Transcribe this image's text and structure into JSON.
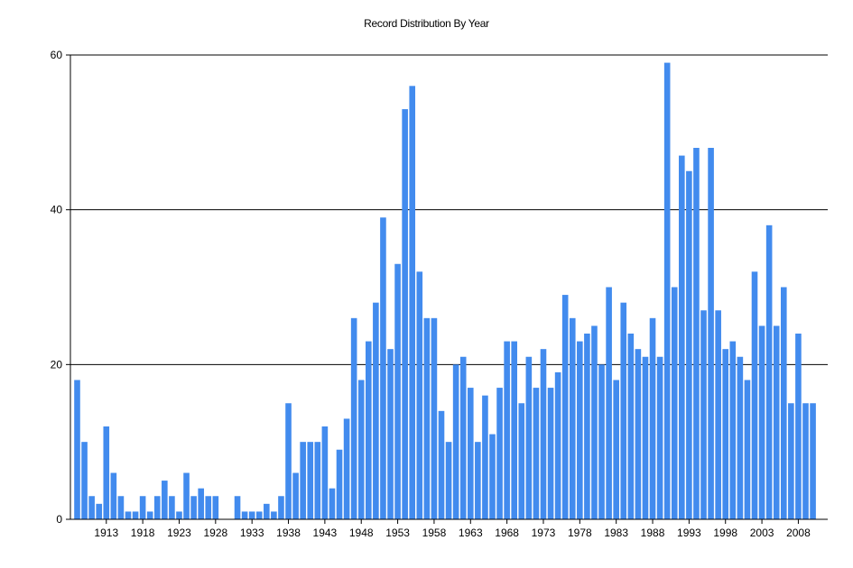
{
  "chart_data": {
    "type": "bar",
    "title": "Record Distribution By Year",
    "xlabel": "",
    "ylabel": "",
    "ylim": [
      0,
      60
    ],
    "yticks": [
      0,
      20,
      40,
      60
    ],
    "xtick_labels": [
      "1913",
      "1918",
      "1923",
      "1928",
      "1933",
      "1938",
      "1943",
      "1948",
      "1953",
      "1958",
      "1963",
      "1968",
      "1973",
      "1978",
      "1983",
      "1988",
      "1993",
      "1998",
      "2003",
      "2008"
    ],
    "grid": "horizontal major lines at 20, 40, 60",
    "legend": "none",
    "bar_color": "#428BEE",
    "categories": [
      1909,
      1910,
      1911,
      1912,
      1913,
      1914,
      1915,
      1916,
      1917,
      1918,
      1919,
      1920,
      1921,
      1922,
      1923,
      1924,
      1925,
      1926,
      1927,
      1928,
      1929,
      1930,
      1931,
      1932,
      1933,
      1934,
      1935,
      1936,
      1937,
      1938,
      1939,
      1940,
      1941,
      1942,
      1943,
      1944,
      1945,
      1946,
      1947,
      1948,
      1949,
      1950,
      1951,
      1952,
      1953,
      1954,
      1955,
      1956,
      1957,
      1958,
      1959,
      1960,
      1961,
      1962,
      1963,
      1964,
      1965,
      1966,
      1967,
      1968,
      1969,
      1970,
      1971,
      1972,
      1973,
      1974,
      1975,
      1976,
      1977,
      1978,
      1979,
      1980,
      1981,
      1982,
      1983,
      1984,
      1985,
      1986,
      1987,
      1988,
      1989,
      1990,
      1991,
      1992,
      1993,
      1994,
      1995,
      1996,
      1997,
      1998,
      1999,
      2000,
      2001,
      2002,
      2003,
      2004,
      2005,
      2006,
      2007,
      2008,
      2009,
      2010
    ],
    "values": [
      18,
      10,
      3,
      2,
      12,
      6,
      3,
      1,
      1,
      3,
      1,
      3,
      5,
      3,
      1,
      6,
      3,
      4,
      3,
      3,
      0,
      0,
      3,
      1,
      1,
      1,
      2,
      1,
      3,
      15,
      6,
      10,
      10,
      10,
      12,
      4,
      9,
      13,
      26,
      18,
      23,
      28,
      39,
      22,
      33,
      53,
      56,
      32,
      26,
      26,
      14,
      10,
      20,
      21,
      17,
      10,
      16,
      11,
      17,
      23,
      23,
      15,
      21,
      17,
      22,
      17,
      19,
      29,
      26,
      23,
      24,
      25,
      20,
      30,
      18,
      28,
      24,
      22,
      21,
      26,
      21,
      59,
      30,
      47,
      45,
      48,
      27,
      48,
      27,
      22,
      23,
      21,
      18,
      32,
      25,
      38,
      25,
      30,
      15,
      24,
      15,
      15
    ]
  }
}
